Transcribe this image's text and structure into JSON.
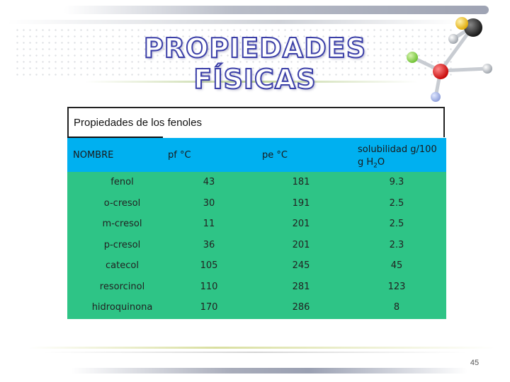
{
  "slide": {
    "title": "PROPIEDADES FÍSICAS",
    "page_number": "45"
  },
  "table": {
    "caption": "Propiedades de los fenoles",
    "headers": {
      "name": "NOMBRE",
      "mp": "pf °C",
      "bp": "pe °C",
      "solubility_line1": "solubilidad g/100",
      "solubility_line2_prefix": "g H",
      "solubility_line2_sub": "2",
      "solubility_line2_suffix": "O"
    },
    "rows": [
      {
        "name": "fenol",
        "mp": "43",
        "bp": "181",
        "sol": "9.3"
      },
      {
        "name": "o-cresol",
        "mp": "30",
        "bp": "191",
        "sol": "2.5"
      },
      {
        "name": "m-cresol",
        "mp": "11",
        "bp": "201",
        "sol": "2.5"
      },
      {
        "name": "p-cresol",
        "mp": "36",
        "bp": "201",
        "sol": "2.3"
      },
      {
        "name": "catecol",
        "mp": "105",
        "bp": "245",
        "sol": "45"
      },
      {
        "name": "resorcinol",
        "mp": "110",
        "bp": "281",
        "sol": "123"
      },
      {
        "name": "hidroquinona",
        "mp": "170",
        "bp": "286",
        "sol": "8"
      }
    ]
  },
  "colors": {
    "header_bg": "#00b0f0",
    "body_bg": "#2ec486",
    "title_outline": "#3b3fa8"
  },
  "icons": {
    "decoration": "molecule-model-icon"
  }
}
